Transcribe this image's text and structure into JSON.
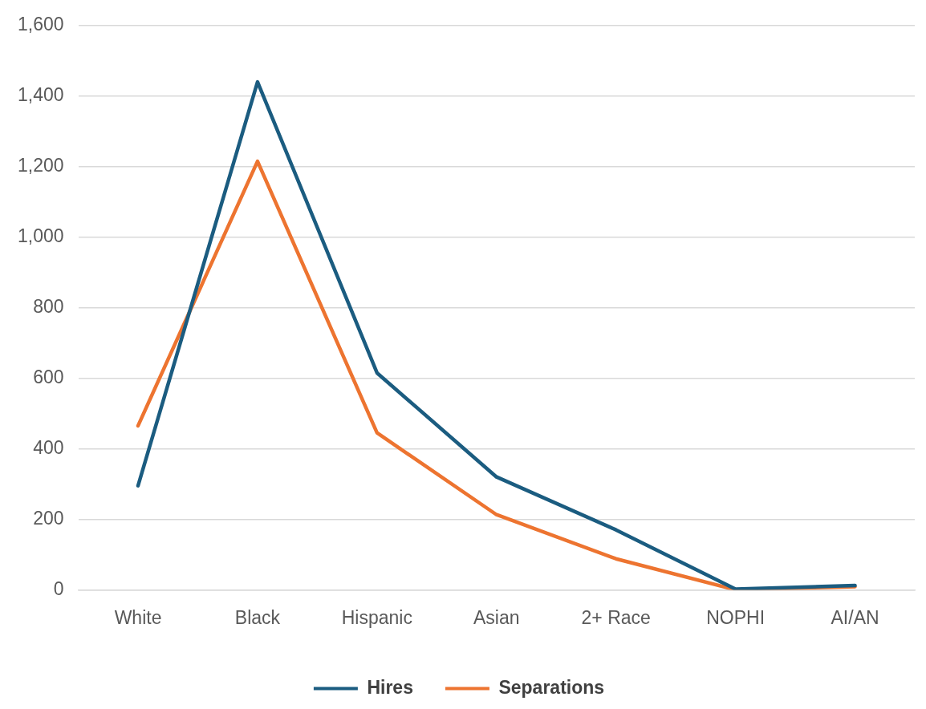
{
  "chart_data": {
    "type": "line",
    "categories": [
      "White",
      "Black",
      "Hispanic",
      "Asian",
      "2+ Race",
      "NOPHI",
      "AI/AN"
    ],
    "series": [
      {
        "name": "Hires",
        "color": "#1b5c80",
        "values": [
          295,
          1440,
          615,
          320,
          170,
          2,
          12
        ]
      },
      {
        "name": "Separations",
        "color": "#ed7430",
        "values": [
          465,
          1215,
          445,
          213,
          88,
          0,
          9
        ]
      }
    ],
    "ylim": [
      0,
      1600
    ],
    "yticks": [
      {
        "value": 0,
        "label": "0"
      },
      {
        "value": 200,
        "label": "200"
      },
      {
        "value": 400,
        "label": "400"
      },
      {
        "value": 600,
        "label": "600"
      },
      {
        "value": 800,
        "label": "800"
      },
      {
        "value": 1000,
        "label": "1,000"
      },
      {
        "value": 1200,
        "label": "1,200"
      },
      {
        "value": 1400,
        "label": "1,400"
      },
      {
        "value": 1600,
        "label": "1,600"
      }
    ],
    "grid": "y",
    "legend": "bottom",
    "marker": "none",
    "line_style": "solid"
  }
}
